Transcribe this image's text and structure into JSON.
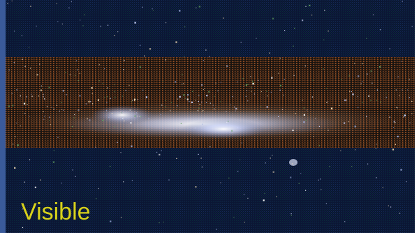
{
  "label": "Visible"
}
